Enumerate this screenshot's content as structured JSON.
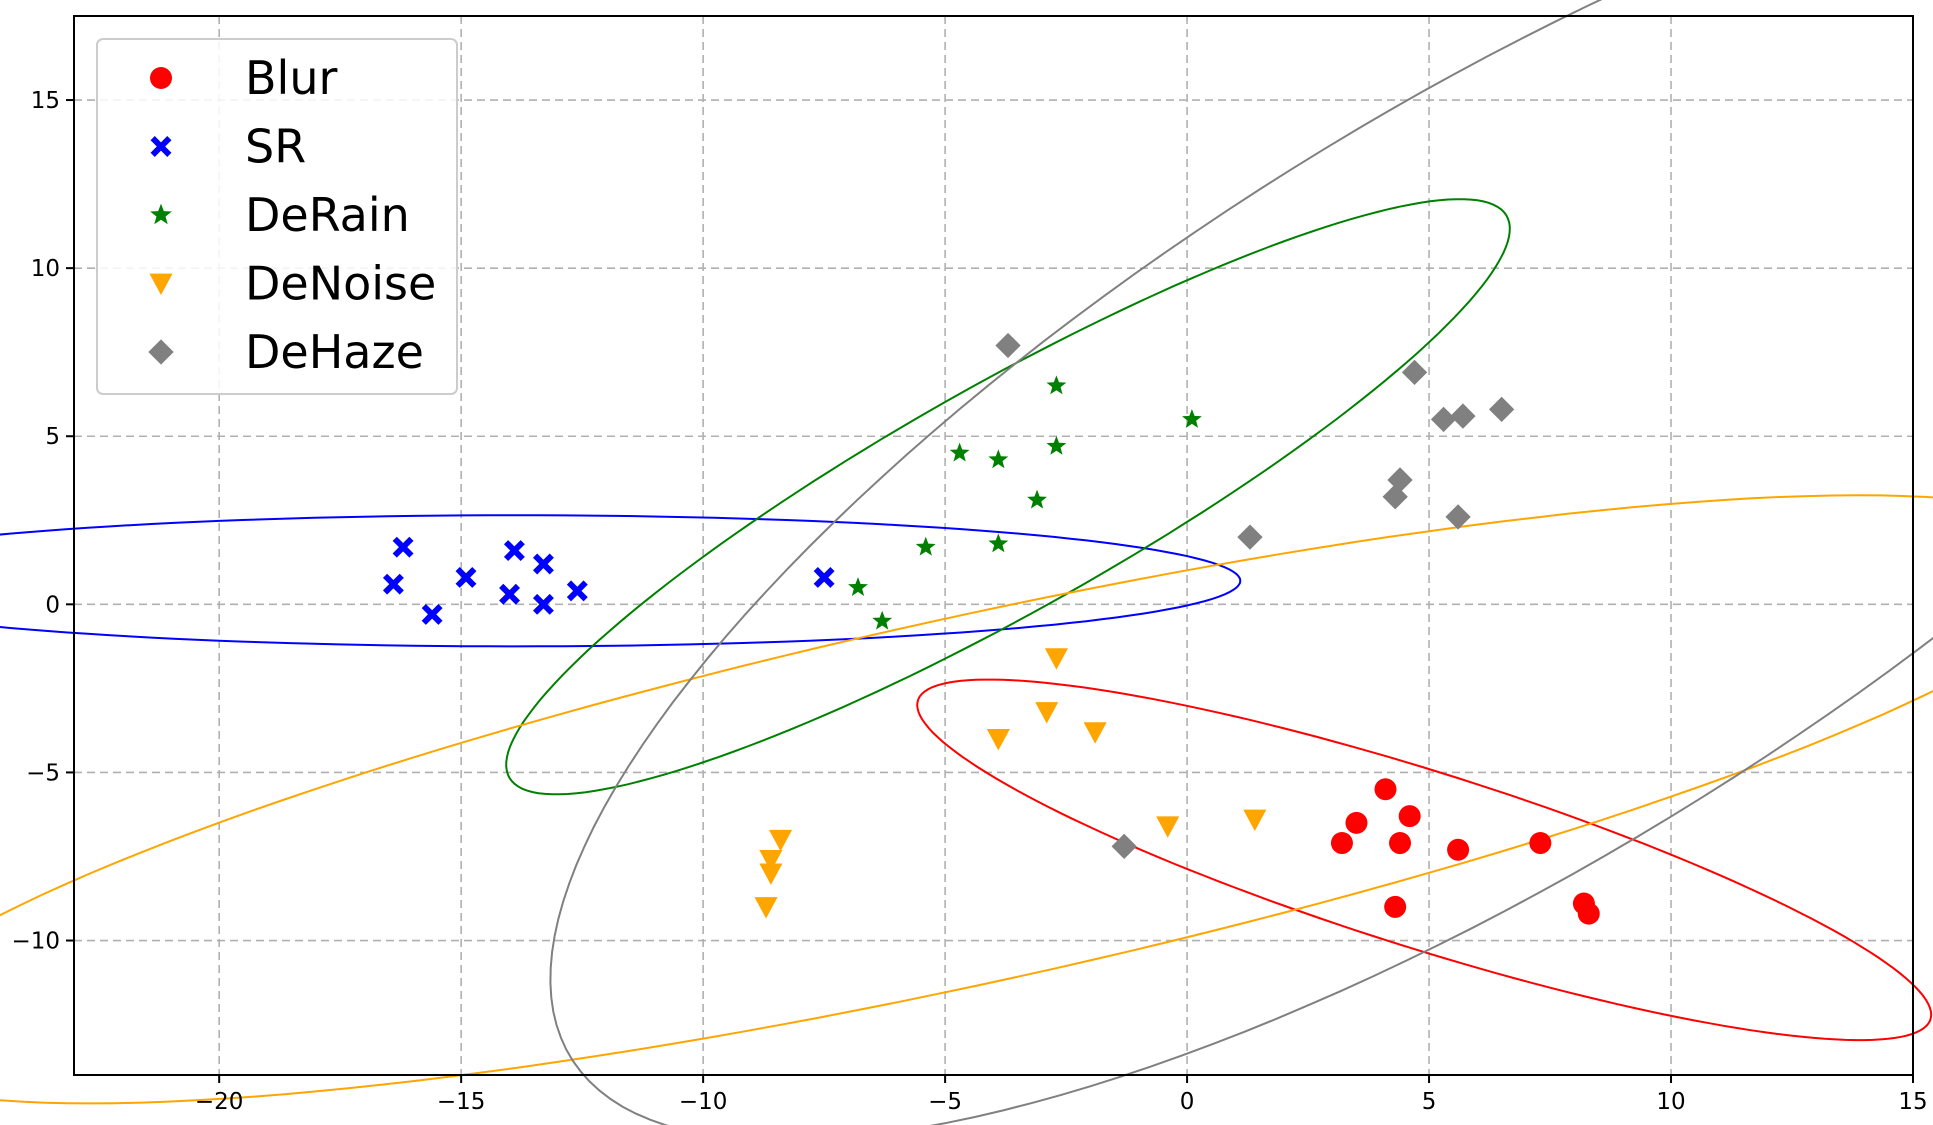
{
  "chart_data": {
    "type": "scatter",
    "title": "",
    "xlabel": "",
    "ylabel": "",
    "xlim": [
      -23,
      15
    ],
    "ylim": [
      -14,
      17.5
    ],
    "xticks": [
      -20,
      -15,
      -10,
      -5,
      0,
      5,
      10,
      15
    ],
    "yticks": [
      -10,
      -5,
      0,
      5,
      10,
      15
    ],
    "grid": true,
    "legend_position": "top-left",
    "series": [
      {
        "name": "Blur",
        "color": "#ff0000",
        "marker": "circle",
        "points": [
          [
            4.1,
            -5.5
          ],
          [
            3.5,
            -6.5
          ],
          [
            4.6,
            -6.3
          ],
          [
            3.2,
            -7.1
          ],
          [
            4.4,
            -7.1
          ],
          [
            5.6,
            -7.3
          ],
          [
            7.3,
            -7.1
          ],
          [
            4.3,
            -9.0
          ],
          [
            8.2,
            -8.9
          ],
          [
            8.3,
            -9.2
          ]
        ],
        "ellipse": {
          "cx": 4.9,
          "cy": -7.6,
          "rx": 11.5,
          "ry": 2.5,
          "angle_deg": -25
        }
      },
      {
        "name": "SR",
        "color": "#0000ff",
        "marker": "x",
        "points": [
          [
            -16.2,
            1.7
          ],
          [
            -16.4,
            0.6
          ],
          [
            -15.6,
            -0.3
          ],
          [
            -14.9,
            0.8
          ],
          [
            -13.9,
            1.6
          ],
          [
            -14.0,
            0.3
          ],
          [
            -13.3,
            1.2
          ],
          [
            -13.3,
            0.0
          ],
          [
            -12.6,
            0.4
          ],
          [
            -7.5,
            0.8
          ]
        ],
        "ellipse": {
          "cx": -13.9,
          "cy": 0.7,
          "rx": 15.0,
          "ry": 1.95,
          "angle_deg": 0
        }
      },
      {
        "name": "DeRain",
        "color": "#008000",
        "marker": "star",
        "points": [
          [
            -2.7,
            6.5
          ],
          [
            0.1,
            5.5
          ],
          [
            -4.7,
            4.5
          ],
          [
            -3.9,
            4.3
          ],
          [
            -2.7,
            4.7
          ],
          [
            -3.1,
            3.1
          ],
          [
            -5.4,
            1.7
          ],
          [
            -3.9,
            1.8
          ],
          [
            -6.8,
            0.5
          ],
          [
            -6.3,
            -0.5
          ]
        ],
        "ellipse": {
          "cx": -3.7,
          "cy": 3.2,
          "rx": 13.3,
          "ry": 3.0,
          "angle_deg": 40
        }
      },
      {
        "name": "DeNoise",
        "color": "#ffa500",
        "marker": "triangle_down",
        "points": [
          [
            -2.7,
            -1.6
          ],
          [
            -2.9,
            -3.2
          ],
          [
            -1.9,
            -3.8
          ],
          [
            -3.9,
            -4.0
          ],
          [
            -8.4,
            -7.0
          ],
          [
            -8.6,
            -7.6
          ],
          [
            -8.6,
            -8.0
          ],
          [
            -8.7,
            -9.0
          ],
          [
            -0.4,
            -6.6
          ],
          [
            1.4,
            -6.4
          ]
        ],
        "ellipse": {
          "cx": -4.4,
          "cy": -5.8,
          "rx": 24.3,
          "ry": 5.3,
          "angle_deg": 18
        }
      },
      {
        "name": "DeHaze",
        "color": "#808080",
        "marker": "diamond",
        "points": [
          [
            -3.7,
            7.7
          ],
          [
            4.7,
            6.9
          ],
          [
            5.3,
            5.5
          ],
          [
            5.7,
            5.6
          ],
          [
            6.5,
            5.8
          ],
          [
            4.4,
            3.7
          ],
          [
            4.3,
            3.2
          ],
          [
            5.6,
            2.6
          ],
          [
            1.3,
            2.0
          ],
          [
            -1.3,
            -7.2
          ]
        ],
        "ellipse": {
          "cx": 6.4,
          "cy": 3.6,
          "rx": 25.9,
          "ry": 9.7,
          "angle_deg": 45
        }
      }
    ]
  }
}
